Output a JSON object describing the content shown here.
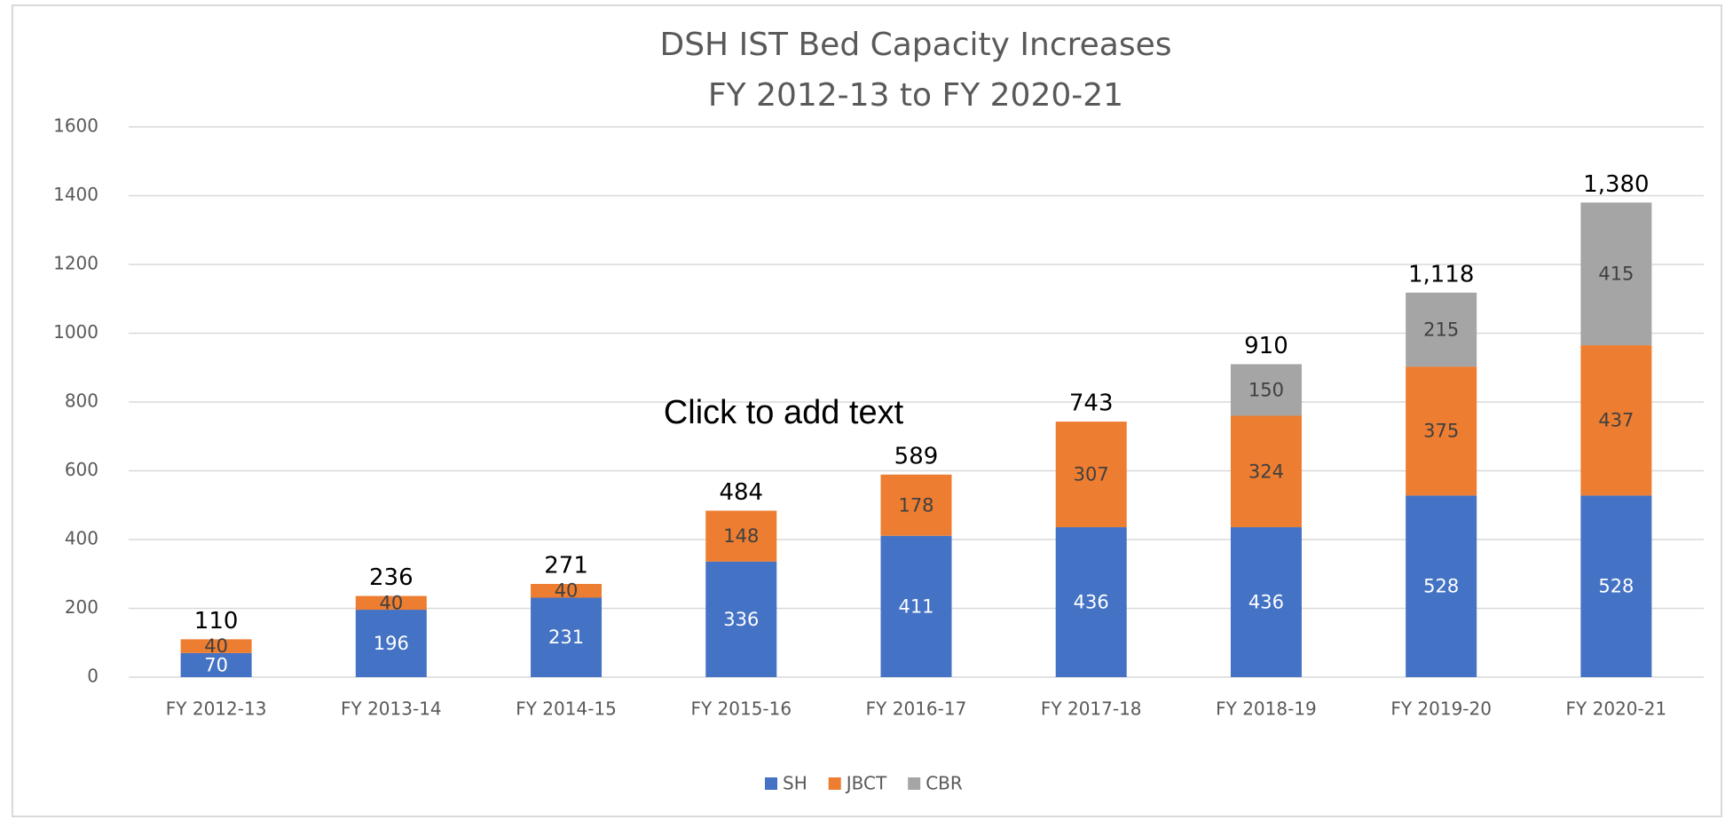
{
  "chart_data": {
    "type": "stacked_bar",
    "title": "DSH IST Bed Capacity Increases",
    "subtitle": "FY 2012-13 to FY 2020-21",
    "annotation": "Click to add text",
    "categories": [
      "FY 2012-13",
      "FY 2013-14",
      "FY 2014-15",
      "FY 2015-16",
      "FY 2016-17",
      "FY 2017-18",
      "FY 2018-19",
      "FY 2019-20",
      "FY 2020-21"
    ],
    "series": [
      {
        "name": "SH",
        "color": "#4472c4",
        "values": [
          70,
          196,
          231,
          336,
          411,
          436,
          436,
          528,
          528
        ]
      },
      {
        "name": "JBCT",
        "color": "#ed7d31",
        "values": [
          40,
          40,
          40,
          148,
          178,
          307,
          324,
          375,
          437
        ]
      },
      {
        "name": "CBR",
        "color": "#a5a5a5",
        "values": [
          null,
          null,
          null,
          null,
          null,
          null,
          150,
          215,
          415
        ]
      }
    ],
    "totals": {
      "values": [
        110,
        236,
        271,
        484,
        589,
        743,
        910,
        1118,
        1380
      ],
      "value_labels": [
        "110",
        "236",
        "271",
        "484",
        "589",
        "743",
        "910",
        "1,118",
        "1,380"
      ]
    },
    "ylim": [
      0,
      1600
    ],
    "yticks": [
      0,
      200,
      400,
      600,
      800,
      1000,
      1200,
      1400,
      1600
    ],
    "grid": true,
    "legend": "bottom"
  }
}
